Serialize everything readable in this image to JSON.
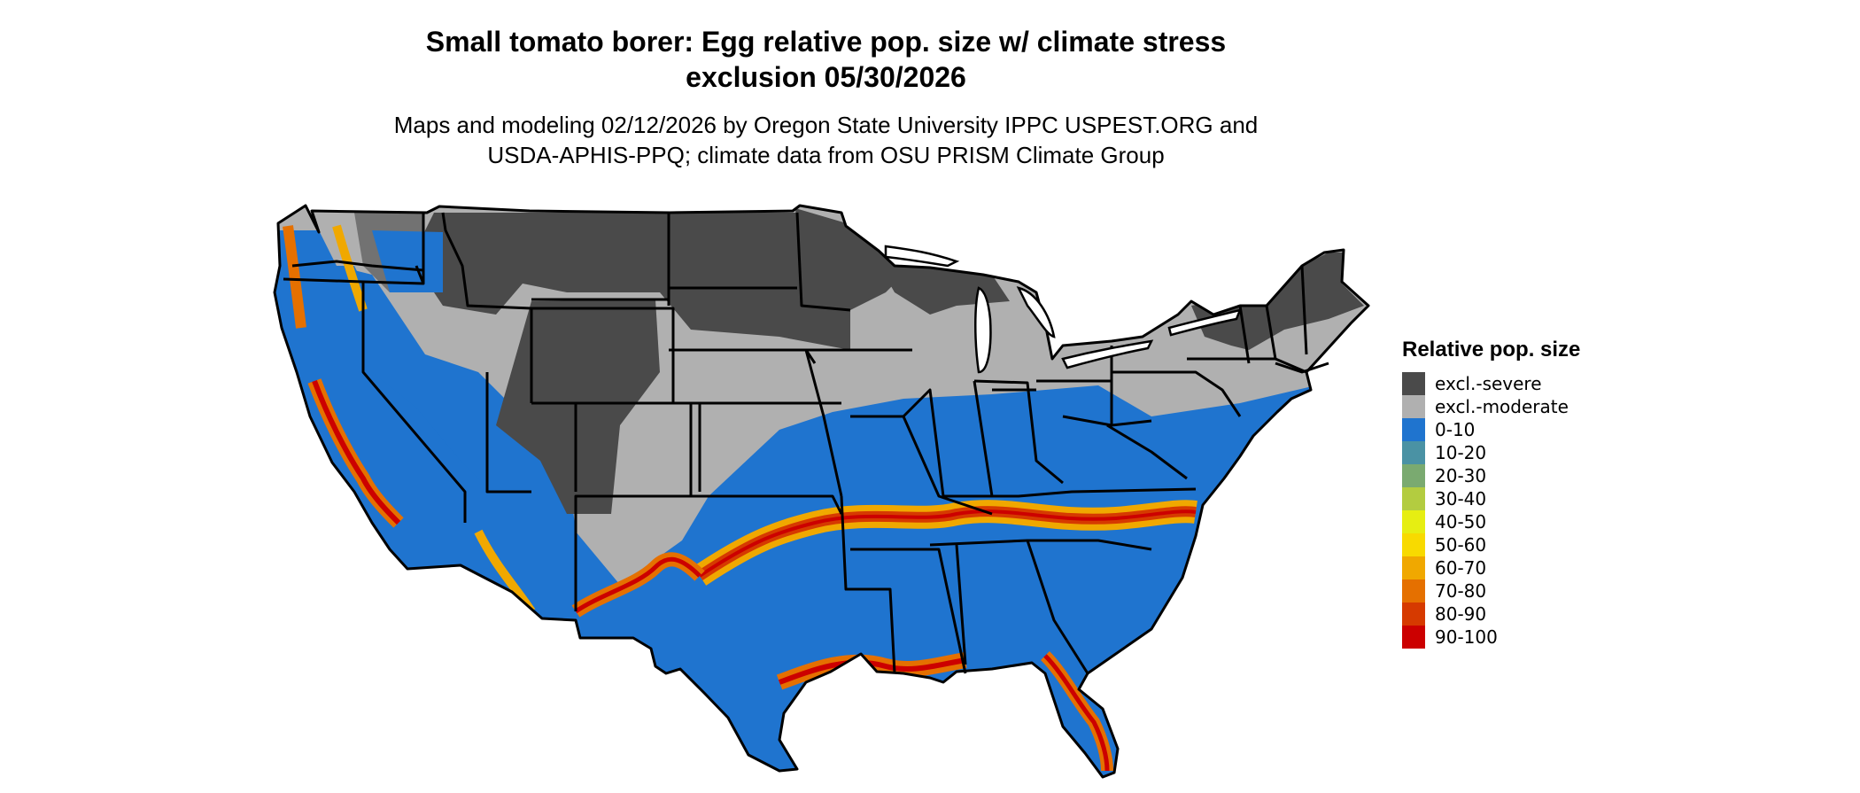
{
  "title_line1": "Small tomato borer: Egg relative pop. size w/ climate stress",
  "title_line2": "exclusion 05/30/2026",
  "subtitle_line1": "Maps and modeling 02/12/2026 by Oregon State University IPPC USPEST.ORG and",
  "subtitle_line2": "USDA-APHIS-PPQ; climate data from OSU PRISM Climate Group",
  "legend": {
    "title": "Relative pop. size",
    "items": [
      {
        "label": "excl.-severe",
        "color": "#4a4a4a"
      },
      {
        "label": "excl.-moderate",
        "color": "#b0b0b0"
      },
      {
        "label": "0-10",
        "color": "#1f74cf"
      },
      {
        "label": "10-20",
        "color": "#4a92a4"
      },
      {
        "label": "20-30",
        "color": "#7aaa70"
      },
      {
        "label": "30-40",
        "color": "#b3cc40"
      },
      {
        "label": "40-50",
        "color": "#e6ee12"
      },
      {
        "label": "50-60",
        "color": "#f8da00"
      },
      {
        "label": "60-70",
        "color": "#f0a800"
      },
      {
        "label": "70-80",
        "color": "#e57000"
      },
      {
        "label": "80-90",
        "color": "#d63a00"
      },
      {
        "label": "90-100",
        "color": "#cc0000"
      }
    ]
  }
}
